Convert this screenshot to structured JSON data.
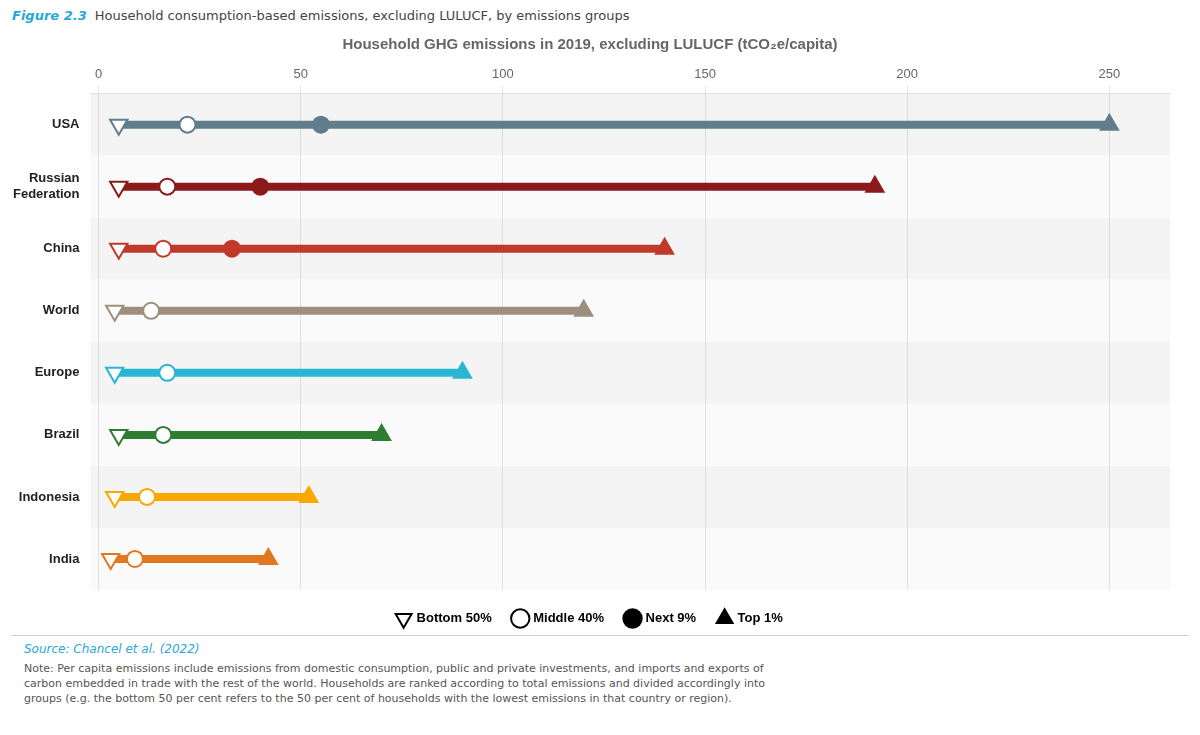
{
  "chart_data": {
    "type": "dumbbell",
    "title": "Household GHG emissions in 2019, excluding LULUCF (tCO₂e/capita)",
    "subtitle": "Household consumption-based emissions, excluding LULUCF, by emissions groups",
    "categories": [
      "USA",
      "Russian\nFederation",
      "China",
      "World",
      "Europe",
      "Brazil",
      "Indonesia",
      "India"
    ],
    "colors": [
      "#607d8b",
      "#8b1a1a",
      "#c0392b",
      "#9e8e7e",
      "#29b6d5",
      "#2e7d32",
      "#f9a800",
      "#e07820"
    ],
    "series": [
      {
        "name": "Bottom 50%",
        "marker": "open_triangle_down",
        "values": [
          5,
          5,
          5,
          4,
          4,
          5,
          4,
          3
        ]
      },
      {
        "name": "Middle 40%",
        "marker": "open_circle",
        "values": [
          22,
          17,
          16,
          13,
          17,
          16,
          12,
          9
        ]
      },
      {
        "name": "Next 9%",
        "marker": "filled_circle",
        "values": [
          55,
          40,
          33,
          null,
          null,
          null,
          null,
          null
        ]
      },
      {
        "name": "Top 1%",
        "marker": "filled_triangle_up",
        "values": [
          250,
          192,
          140,
          120,
          90,
          70,
          52,
          42
        ]
      }
    ],
    "xlim": [
      -2,
      265
    ],
    "xticks": [
      0,
      50,
      100,
      150,
      200,
      250
    ],
    "grid": true,
    "legend": "bottom",
    "annotations": [
      "Figure 2.3",
      "Source: Chancel et al. (2022)",
      "Note: Per capita emissions include emissions from domestic consumption, public and private investments, and imports and exports of\ncarbon embedded in trade with the rest of the world. Households are ranked according to total emissions and divided accordingly into\ngroups (e.g. the bottom 50 per cent refers to the 50 per cent of households with the lowest emissions in that country or region)."
    ]
  }
}
